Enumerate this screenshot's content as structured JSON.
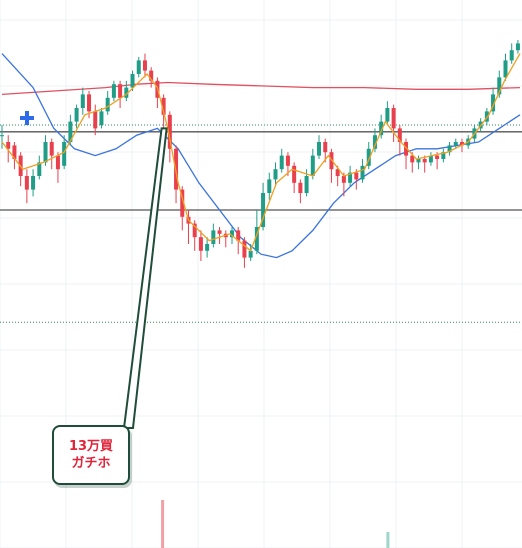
{
  "annotation": {
    "line1": "13万買",
    "line2": "ガチホ"
  },
  "colors": {
    "up": "#1f9d87",
    "down": "#e8404d",
    "ma_short": "#f0a020",
    "ma_mid": "#3a73e0",
    "ma_long": "#e05060",
    "hline": "#555555",
    "dotted": "#2b8a55",
    "grid": "#eef0f3",
    "annotation_border": "#1f4d3a",
    "annotation_text": "#e0243a"
  },
  "chart_data": {
    "type": "candlestick",
    "ylim": [
      0,
      100
    ],
    "xlim": [
      0,
      100
    ],
    "grid": true,
    "horizontal_lines": [
      73,
      50
    ],
    "dotted_lines": [
      75,
      17
    ],
    "candles": [
      [
        0,
        72,
        72,
        68,
        75
      ],
      [
        1.2,
        70,
        68,
        64,
        72
      ],
      [
        2.4,
        69,
        65,
        62,
        70
      ],
      [
        3.6,
        66,
        60,
        57,
        67
      ],
      [
        4.8,
        60,
        56,
        52,
        62
      ],
      [
        6,
        56,
        60,
        54,
        62
      ],
      [
        7.2,
        60,
        64,
        59,
        66
      ],
      [
        8.4,
        64,
        70,
        63,
        72
      ],
      [
        9.6,
        70,
        66,
        62,
        71
      ],
      [
        10.8,
        66,
        62,
        58,
        67
      ],
      [
        12,
        63,
        70,
        62,
        72
      ],
      [
        13.2,
        70,
        76,
        69,
        78
      ],
      [
        14.4,
        76,
        80,
        74,
        81
      ],
      [
        15.6,
        80,
        84,
        78,
        86
      ],
      [
        16.8,
        84,
        79,
        77,
        85
      ],
      [
        18,
        79,
        74,
        72,
        81
      ],
      [
        19.2,
        75,
        79,
        74,
        80
      ],
      [
        20.4,
        79,
        83,
        78,
        85
      ],
      [
        21.6,
        83,
        87,
        82,
        88
      ],
      [
        22.8,
        87,
        83,
        80,
        88
      ],
      [
        24,
        83,
        86,
        82,
        88
      ],
      [
        25.2,
        86,
        90,
        85,
        91
      ],
      [
        26.4,
        90,
        94,
        89,
        95
      ],
      [
        27.6,
        94,
        91,
        89,
        96
      ],
      [
        28.8,
        91,
        88,
        86,
        92
      ],
      [
        30,
        88,
        83,
        80,
        89
      ],
      [
        31.2,
        83,
        78,
        74,
        84
      ],
      [
        32.4,
        78,
        68,
        64,
        79
      ],
      [
        33.6,
        68,
        56,
        52,
        69
      ],
      [
        34.8,
        56,
        48,
        44,
        57
      ],
      [
        36,
        48,
        46,
        40,
        50
      ],
      [
        37.2,
        46,
        42,
        38,
        47
      ],
      [
        38.4,
        42,
        38,
        35,
        44
      ],
      [
        39.6,
        38,
        40,
        36,
        42
      ],
      [
        40.8,
        40,
        44,
        39,
        46
      ],
      [
        42,
        44,
        43,
        40,
        45
      ],
      [
        43.2,
        43,
        42,
        39,
        44
      ],
      [
        44.4,
        42,
        44,
        40,
        45
      ],
      [
        45.6,
        44,
        41,
        37,
        45
      ],
      [
        46.8,
        41,
        36,
        33,
        42
      ],
      [
        48,
        36,
        38,
        35,
        40
      ],
      [
        49.2,
        38,
        45,
        37,
        50
      ],
      [
        50.4,
        45,
        55,
        44,
        58
      ],
      [
        51.6,
        55,
        59,
        53,
        61
      ],
      [
        52.8,
        59,
        62,
        57,
        64
      ],
      [
        54,
        62,
        66,
        61,
        68
      ],
      [
        55.2,
        66,
        63,
        60,
        67
      ],
      [
        56.4,
        63,
        58,
        55,
        64
      ],
      [
        57.6,
        58,
        55,
        52,
        59
      ],
      [
        58.8,
        55,
        60,
        54,
        62
      ],
      [
        60,
        60,
        66,
        59,
        68
      ],
      [
        61.2,
        66,
        70,
        65,
        72
      ],
      [
        62.4,
        70,
        67,
        64,
        71
      ],
      [
        63.6,
        67,
        62,
        58,
        68
      ],
      [
        64.8,
        62,
        60,
        57,
        63
      ],
      [
        66,
        60,
        58,
        54,
        61
      ],
      [
        67.2,
        58,
        61,
        57,
        63
      ],
      [
        68.4,
        61,
        59,
        56,
        62
      ],
      [
        69.6,
        59,
        63,
        58,
        65
      ],
      [
        70.8,
        63,
        68,
        62,
        70
      ],
      [
        72,
        68,
        72,
        67,
        74
      ],
      [
        73.2,
        72,
        76,
        71,
        78
      ],
      [
        74.4,
        76,
        80,
        75,
        82
      ],
      [
        75.6,
        80,
        74,
        70,
        81
      ],
      [
        76.8,
        74,
        70,
        66,
        75
      ],
      [
        78,
        70,
        66,
        62,
        71
      ],
      [
        79.2,
        66,
        64,
        61,
        67
      ],
      [
        80.4,
        64,
        65,
        62,
        66
      ],
      [
        81.6,
        65,
        64,
        61,
        66
      ],
      [
        82.8,
        64,
        66,
        63,
        67
      ],
      [
        84,
        66,
        65,
        62,
        67
      ],
      [
        85.2,
        65,
        67,
        64,
        68
      ],
      [
        86.4,
        67,
        69,
        66,
        70
      ],
      [
        87.6,
        69,
        70,
        68,
        71
      ],
      [
        88.8,
        70,
        69,
        67,
        71
      ],
      [
        90,
        69,
        71,
        68,
        72
      ],
      [
        91.2,
        71,
        74,
        70,
        75
      ],
      [
        92.4,
        74,
        76,
        73,
        77
      ],
      [
        93.6,
        76,
        79,
        75,
        80
      ],
      [
        94.8,
        79,
        84,
        78,
        86
      ],
      [
        96,
        84,
        89,
        83,
        91
      ],
      [
        97.2,
        89,
        94,
        88,
        96
      ],
      [
        98.4,
        94,
        97,
        93,
        99
      ],
      [
        99.6,
        97,
        99,
        96,
        100
      ]
    ],
    "ma_short": [
      [
        0,
        70
      ],
      [
        4,
        62
      ],
      [
        8,
        64
      ],
      [
        12,
        67
      ],
      [
        16,
        78
      ],
      [
        20,
        80
      ],
      [
        24,
        84
      ],
      [
        28,
        90
      ],
      [
        30,
        86
      ],
      [
        32,
        74
      ],
      [
        34,
        58
      ],
      [
        36,
        47
      ],
      [
        40,
        41
      ],
      [
        44,
        43
      ],
      [
        48,
        38
      ],
      [
        50,
        46
      ],
      [
        53,
        58
      ],
      [
        56,
        62
      ],
      [
        60,
        60
      ],
      [
        63,
        66
      ],
      [
        66,
        60
      ],
      [
        70,
        62
      ],
      [
        74,
        76
      ],
      [
        77,
        70
      ],
      [
        80,
        65
      ],
      [
        86,
        67
      ],
      [
        90,
        70
      ],
      [
        94,
        78
      ],
      [
        97,
        88
      ],
      [
        100,
        96
      ]
    ],
    "ma_mid": [
      [
        0,
        96
      ],
      [
        6,
        86
      ],
      [
        10,
        74
      ],
      [
        14,
        68
      ],
      [
        18,
        66
      ],
      [
        22,
        68
      ],
      [
        26,
        72
      ],
      [
        30,
        74
      ],
      [
        34,
        68
      ],
      [
        38,
        58
      ],
      [
        42,
        50
      ],
      [
        46,
        42
      ],
      [
        50,
        37
      ],
      [
        53,
        36
      ],
      [
        56,
        38
      ],
      [
        60,
        44
      ],
      [
        64,
        52
      ],
      [
        68,
        58
      ],
      [
        72,
        62
      ],
      [
        76,
        66
      ],
      [
        80,
        68
      ],
      [
        84,
        68
      ],
      [
        88,
        69
      ],
      [
        92,
        70
      ],
      [
        96,
        74
      ],
      [
        100,
        78
      ]
    ],
    "ma_long": [
      [
        0,
        84
      ],
      [
        10,
        85
      ],
      [
        20,
        86
      ],
      [
        26,
        87
      ],
      [
        32,
        87.5
      ],
      [
        40,
        87
      ],
      [
        50,
        86.5
      ],
      [
        60,
        86
      ],
      [
        70,
        86
      ],
      [
        80,
        85.5
      ],
      [
        90,
        85.5
      ],
      [
        100,
        86
      ]
    ],
    "volume": [
      [
        31,
        6
      ],
      [
        74.5,
        2
      ]
    ]
  }
}
